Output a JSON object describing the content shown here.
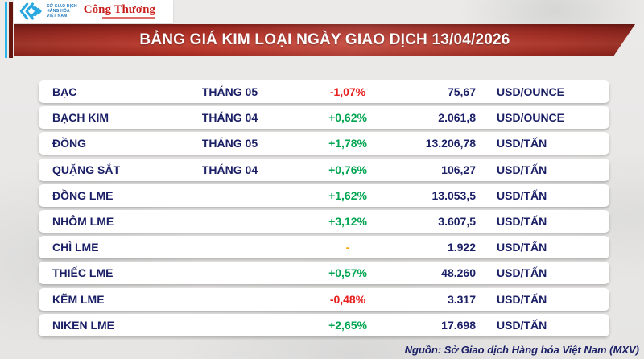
{
  "branding": {
    "mxv_lines": [
      "SỞ GIAO DỊCH",
      "HÀNG HÓA",
      "VIỆT NAM"
    ],
    "newspaper": "Công Thương"
  },
  "header": {
    "title": "BẢNG GIÁ KIM LOẠI NGÀY GIAO DỊCH 13/04/2026"
  },
  "chart_data": {
    "type": "table",
    "title": "BẢNG GIÁ KIM LOẠI NGÀY GIAO DỊCH 13/04/2026",
    "columns": [
      "commodity",
      "contract_month",
      "change_percent",
      "price",
      "unit"
    ],
    "rows": [
      {
        "name": "BẠC",
        "month": "THÁNG 05",
        "change": "-1,07%",
        "change_value": -1.07,
        "direction": "down",
        "price": "75,67",
        "price_value": 75.67,
        "unit": "USD/OUNCE"
      },
      {
        "name": "BẠCH KIM",
        "month": "THÁNG 04",
        "change": "+0,62%",
        "change_value": 0.62,
        "direction": "up",
        "price": "2.061,8",
        "price_value": 2061.8,
        "unit": "USD/OUNCE"
      },
      {
        "name": "ĐỒNG",
        "month": "THÁNG 05",
        "change": "+1,78%",
        "change_value": 1.78,
        "direction": "up",
        "price": "13.206,78",
        "price_value": 13206.78,
        "unit": "USD/TẤN"
      },
      {
        "name": "QUẶNG SẮT",
        "month": "THÁNG 04",
        "change": "+0,76%",
        "change_value": 0.76,
        "direction": "up",
        "price": "106,27",
        "price_value": 106.27,
        "unit": "USD/TẤN"
      },
      {
        "name": "ĐỒNG LME",
        "month": "",
        "change": "+1,62%",
        "change_value": 1.62,
        "direction": "up",
        "price": "13.053,5",
        "price_value": 13053.5,
        "unit": "USD/TẤN"
      },
      {
        "name": "NHÔM LME",
        "month": "",
        "change": "+3,12%",
        "change_value": 3.12,
        "direction": "up",
        "price": "3.607,5",
        "price_value": 3607.5,
        "unit": "USD/TẤN"
      },
      {
        "name": "CHÌ LME",
        "month": "",
        "change": "-",
        "change_value": null,
        "direction": "neutral",
        "price": "1.922",
        "price_value": 1922,
        "unit": "USD/TẤN"
      },
      {
        "name": "THIẾC LME",
        "month": "",
        "change": "+0,57%",
        "change_value": 0.57,
        "direction": "up",
        "price": "48.260",
        "price_value": 48260,
        "unit": "USD/TẤN"
      },
      {
        "name": "KẼM LME",
        "month": "",
        "change": "-0,48%",
        "change_value": -0.48,
        "direction": "down",
        "price": "3.317",
        "price_value": 3317,
        "unit": "USD/TẤN"
      },
      {
        "name": "NIKEN LME",
        "month": "",
        "change": "+2,65%",
        "change_value": 2.65,
        "direction": "up",
        "price": "17.698",
        "price_value": 17698,
        "unit": "USD/TẤN"
      }
    ]
  },
  "footer": {
    "source": "Nguồn: Sở Giao dịch Hàng hóa Việt Nam (MXV)"
  },
  "colors": {
    "up": "#00a551",
    "down": "#e8201e",
    "neutral": "#f7a600",
    "banner_red": "#b5352a",
    "navy_text": "#1b2066",
    "stripe_cyan": "#2cb3e8",
    "stripe_maroon": "#64160f",
    "logo_blue": "#1c75bc",
    "newspaper_red": "#c9201d"
  }
}
